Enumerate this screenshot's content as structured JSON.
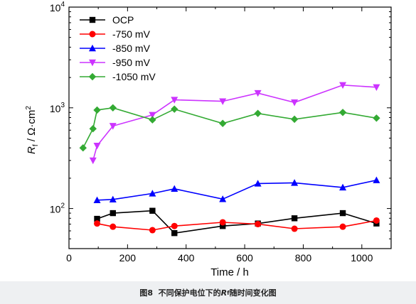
{
  "chart_data": {
    "type": "line",
    "xlabel": "Time / h",
    "ylabel_main": "R",
    "ylabel_sub": "f",
    "ylabel_unit": " / Ω·cm",
    "ylabel_sup": "2",
    "xlim": [
      0,
      1100
    ],
    "ylim": [
      40,
      10000
    ],
    "yscale": "log",
    "x_ticks": [
      0,
      200,
      400,
      600,
      800,
      1000
    ],
    "x_tick_labels": [
      "0",
      "200",
      "400",
      "600",
      "800",
      "1000"
    ],
    "y_ticks": [
      100,
      1000,
      10000
    ],
    "y_tick_labels": [
      {
        "base": "10",
        "exp": "2"
      },
      {
        "base": "10",
        "exp": "3"
      },
      {
        "base": "10",
        "exp": "4"
      }
    ],
    "legend_position": "top-left",
    "series": [
      {
        "name": "OCP",
        "color": "#000000",
        "marker": "square",
        "points": [
          [
            96,
            79
          ],
          [
            150,
            90
          ],
          [
            285,
            95
          ],
          [
            360,
            57
          ],
          [
            525,
            67
          ],
          [
            645,
            71
          ],
          [
            770,
            80
          ],
          [
            935,
            90
          ],
          [
            1050,
            71
          ]
        ]
      },
      {
        "name": "-750 mV",
        "color": "#ff0000",
        "marker": "circle",
        "points": [
          [
            96,
            71
          ],
          [
            150,
            66
          ],
          [
            285,
            61
          ],
          [
            360,
            67
          ],
          [
            525,
            73
          ],
          [
            645,
            70
          ],
          [
            770,
            63
          ],
          [
            935,
            66
          ],
          [
            1050,
            76
          ]
        ]
      },
      {
        "name": "-850 mV",
        "color": "#0000ff",
        "marker": "triangle-up",
        "points": [
          [
            96,
            121
          ],
          [
            150,
            123
          ],
          [
            285,
            141
          ],
          [
            360,
            157
          ],
          [
            525,
            124
          ],
          [
            645,
            177
          ],
          [
            770,
            180
          ],
          [
            935,
            162
          ],
          [
            1050,
            191
          ]
        ]
      },
      {
        "name": "-950 mV",
        "color": "#cc33ff",
        "marker": "triangle-down",
        "points": [
          [
            82,
            300
          ],
          [
            96,
            420
          ],
          [
            150,
            660
          ],
          [
            285,
            850
          ],
          [
            360,
            1200
          ],
          [
            525,
            1160
          ],
          [
            645,
            1400
          ],
          [
            770,
            1130
          ],
          [
            935,
            1680
          ],
          [
            1050,
            1600
          ]
        ]
      },
      {
        "name": "-1050 mV",
        "color": "#33aa33",
        "marker": "diamond",
        "points": [
          [
            48,
            400
          ],
          [
            82,
            620
          ],
          [
            96,
            950
          ],
          [
            150,
            1000
          ],
          [
            285,
            760
          ],
          [
            360,
            970
          ],
          [
            525,
            700
          ],
          [
            645,
            880
          ],
          [
            770,
            770
          ],
          [
            935,
            900
          ],
          [
            1050,
            790
          ]
        ]
      }
    ]
  },
  "caption": {
    "prefix": "图8",
    "text_before": "不同保护电位下的",
    "symbol": "R",
    "symbol_sub": "f",
    "text_after": "随时间变化图"
  }
}
